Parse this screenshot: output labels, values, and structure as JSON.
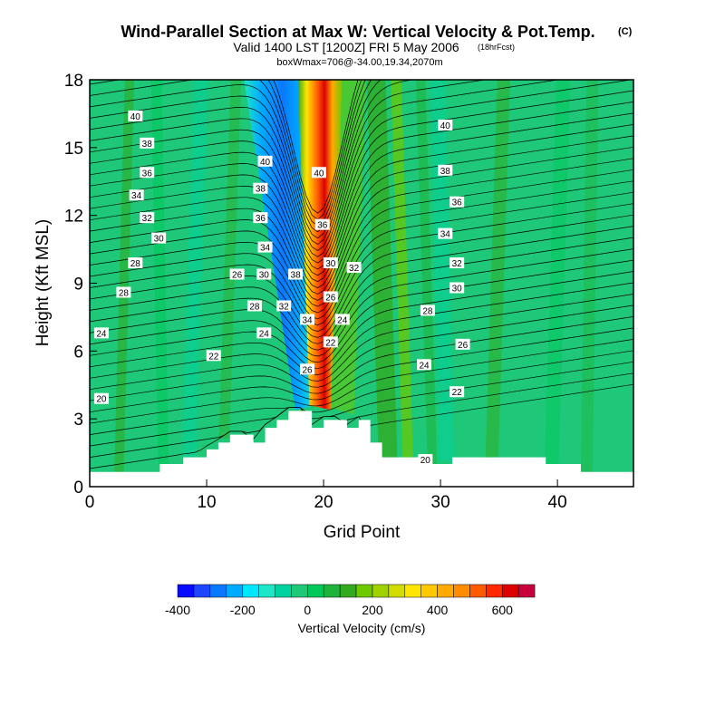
{
  "chart_data": {
    "type": "heatmap",
    "title": "Wind-Parallel Section at Max W: Vertical Velocity & Pot.Temp.",
    "title_tag": "(C)",
    "subtitle": "Valid 1400 LST [1200Z] FRI 5 May 2006",
    "subtitle_tag": "(18hrFcst)",
    "subtitle2": "boxWmax=706@-34.00,19.34,2070m",
    "xlabel": "Grid Point",
    "ylabel": "Height (Kft MSL)",
    "xlim": [
      0,
      46.5
    ],
    "ylim": [
      0,
      18
    ],
    "xticks": [
      "0",
      "10",
      "20",
      "30",
      "40"
    ],
    "yticks": [
      "0",
      "3",
      "6",
      "9",
      "12",
      "15",
      "18"
    ],
    "colorbar": {
      "label": "Vertical Velocity (cm/s)",
      "ticks": [
        "-400",
        "-200",
        "0",
        "200",
        "400",
        "600"
      ],
      "range": [
        -400,
        750
      ],
      "step": 50,
      "colors": [
        "#0a0aff",
        "#1e46ff",
        "#0a78ff",
        "#00aaff",
        "#00e6ff",
        "#1ee6c8",
        "#00d2a0",
        "#1ec878",
        "#00c85a",
        "#1eb43c",
        "#32aa1e",
        "#6ec800",
        "#a0d200",
        "#d2dc00",
        "#ffe600",
        "#ffc800",
        "#ffaa00",
        "#ff8c00",
        "#ff5a00",
        "#ff2800",
        "#dc0000",
        "#c8003c"
      ]
    },
    "series": [
      {
        "name": "vertical velocity peak (cm/s)",
        "values": [
          706
        ]
      }
    ],
    "isentrope_labels": [
      {
        "text": "40",
        "x": 3.9,
        "y": 16.4
      },
      {
        "text": "38",
        "x": 4.9,
        "y": 15.2
      },
      {
        "text": "36",
        "x": 4.9,
        "y": 13.9
      },
      {
        "text": "34",
        "x": 4.0,
        "y": 12.9
      },
      {
        "text": "32",
        "x": 4.9,
        "y": 11.9
      },
      {
        "text": "30",
        "x": 5.9,
        "y": 11.0
      },
      {
        "text": "28",
        "x": 3.9,
        "y": 9.9
      },
      {
        "text": "28",
        "x": 2.9,
        "y": 8.6
      },
      {
        "text": "24",
        "x": 1.0,
        "y": 6.8
      },
      {
        "text": "20",
        "x": 1.0,
        "y": 3.9
      },
      {
        "text": "22",
        "x": 10.6,
        "y": 5.8
      },
      {
        "text": "26",
        "x": 12.6,
        "y": 9.4
      },
      {
        "text": "28",
        "x": 14.1,
        "y": 8.0
      },
      {
        "text": "24",
        "x": 14.9,
        "y": 6.8
      },
      {
        "text": "40",
        "x": 15.0,
        "y": 14.4
      },
      {
        "text": "38",
        "x": 14.6,
        "y": 13.2
      },
      {
        "text": "36",
        "x": 14.6,
        "y": 11.9
      },
      {
        "text": "34",
        "x": 15.0,
        "y": 10.6
      },
      {
        "text": "30",
        "x": 14.9,
        "y": 9.4
      },
      {
        "text": "32",
        "x": 16.6,
        "y": 8.0
      },
      {
        "text": "38",
        "x": 17.6,
        "y": 9.4
      },
      {
        "text": "34",
        "x": 18.6,
        "y": 7.4
      },
      {
        "text": "26",
        "x": 18.6,
        "y": 5.2
      },
      {
        "text": "40",
        "x": 19.6,
        "y": 13.9
      },
      {
        "text": "36",
        "x": 19.9,
        "y": 11.6
      },
      {
        "text": "30",
        "x": 20.6,
        "y": 9.9
      },
      {
        "text": "26",
        "x": 20.6,
        "y": 8.4
      },
      {
        "text": "22",
        "x": 20.6,
        "y": 6.4
      },
      {
        "text": "24",
        "x": 21.6,
        "y": 7.4
      },
      {
        "text": "32",
        "x": 22.6,
        "y": 9.7
      },
      {
        "text": "40",
        "x": 30.4,
        "y": 16.0
      },
      {
        "text": "38",
        "x": 30.4,
        "y": 14.0
      },
      {
        "text": "36",
        "x": 31.4,
        "y": 12.6
      },
      {
        "text": "34",
        "x": 30.4,
        "y": 11.2
      },
      {
        "text": "32",
        "x": 31.4,
        "y": 9.9
      },
      {
        "text": "30",
        "x": 31.4,
        "y": 8.8
      },
      {
        "text": "28",
        "x": 28.9,
        "y": 7.8
      },
      {
        "text": "26",
        "x": 31.9,
        "y": 6.3
      },
      {
        "text": "24",
        "x": 28.6,
        "y": 5.4
      },
      {
        "text": "22",
        "x": 31.4,
        "y": 4.2
      },
      {
        "text": "20",
        "x": 28.7,
        "y": 1.2
      }
    ],
    "terrain_kft": [
      0.65,
      0.65,
      0.65,
      0.65,
      0.65,
      0.65,
      1.0,
      1.0,
      1.3,
      1.3,
      1.65,
      1.95,
      2.3,
      2.3,
      1.95,
      2.6,
      2.95,
      3.35,
      3.35,
      2.6,
      2.95,
      2.95,
      2.6,
      2.95,
      1.95,
      1.3,
      1.3,
      1.3,
      1.3,
      1.0,
      1.0,
      1.3,
      1.3,
      1.3,
      1.3,
      1.3,
      1.3,
      1.3,
      1.3,
      1.0,
      1.0,
      1.0,
      0.65,
      0.65,
      0.65,
      0.65,
      0.65,
      0.65
    ]
  }
}
